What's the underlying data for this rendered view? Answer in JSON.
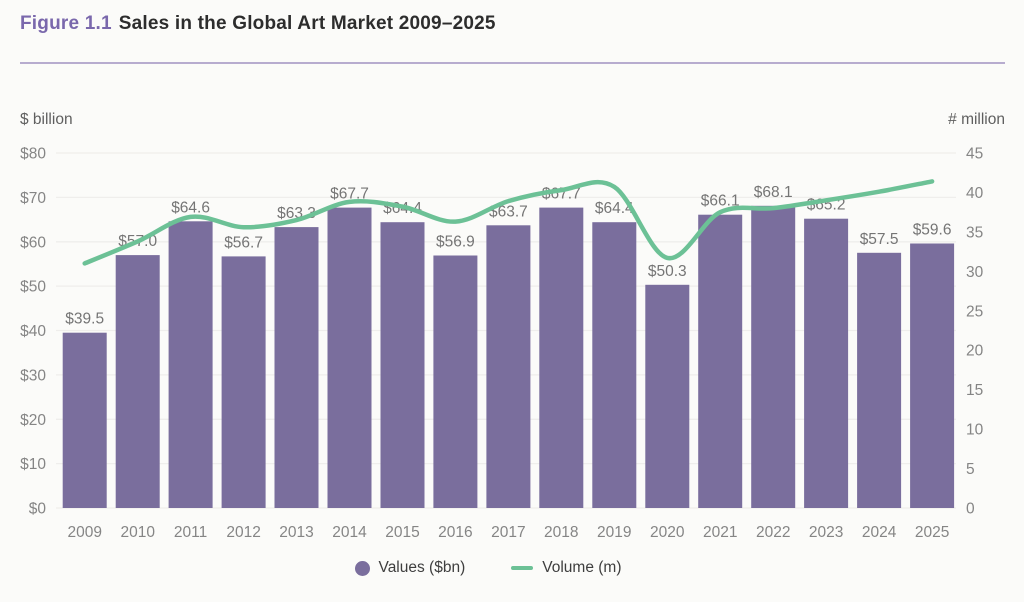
{
  "title": {
    "figure_label": "Figure 1.1",
    "text": "Sales in the Global Art Market 2009–2025"
  },
  "legend": [
    {
      "label": "Values ($bn)",
      "color": "#7a6e9d",
      "swatch": "circle"
    },
    {
      "label": "Volume (m)",
      "color": "#6cc196",
      "swatch": "line"
    }
  ],
  "colors": {
    "accent_purple": "#7a68ac",
    "bar": "#7a6e9d",
    "line": "#6cc196",
    "divider": "#b7accf",
    "background": "#fbfbf9",
    "text_dark": "#2d2d2d",
    "text_gray": "#858585"
  },
  "chart_data": {
    "type": "bar+line",
    "title": "Sales in the Global Art Market 2009–2025",
    "categories": [
      "2009",
      "2010",
      "2011",
      "2012",
      "2013",
      "2014",
      "2015",
      "2016",
      "2017",
      "2018",
      "2019",
      "2020",
      "2021",
      "2022",
      "2023",
      "2024",
      "2025"
    ],
    "series": [
      {
        "name": "Values ($bn)",
        "type": "bar",
        "axis": "left",
        "color": "#7a6e9d",
        "values": [
          39.5,
          57.0,
          64.6,
          56.7,
          63.3,
          67.7,
          64.4,
          56.9,
          63.7,
          67.7,
          64.4,
          50.3,
          66.1,
          68.1,
          65.2,
          57.5,
          59.6
        ],
        "labels": [
          "$39.5",
          "$57.0",
          "$64.6",
          "$56.7",
          "$63.3",
          "$67.7",
          "$64.4",
          "$56.9",
          "$63.7",
          "$67.7",
          "$64.4",
          "$50.3",
          "$66.1",
          "$68.1",
          "$65.2",
          "$57.5",
          "$59.6"
        ]
      },
      {
        "name": "Volume (m)",
        "type": "line",
        "axis": "right",
        "color": "#6cc196",
        "values": [
          31.0,
          33.8,
          36.9,
          35.6,
          36.5,
          38.8,
          38.2,
          36.3,
          38.9,
          40.3,
          40.7,
          31.7,
          37.5,
          38.0,
          39.0,
          40.1,
          41.4
        ]
      }
    ],
    "left_axis": {
      "label": "$ billion",
      "min": 0,
      "max": 80,
      "ticks": [
        "$0",
        "$10",
        "$20",
        "$30",
        "$40",
        "$50",
        "$60",
        "$70",
        "$80"
      ]
    },
    "right_axis": {
      "label": "# million",
      "min": 0,
      "max": 45,
      "ticks": [
        "0",
        "5",
        "10",
        "15",
        "20",
        "25",
        "30",
        "35",
        "40",
        "45"
      ]
    },
    "grid": true,
    "legend_position": "bottom"
  }
}
